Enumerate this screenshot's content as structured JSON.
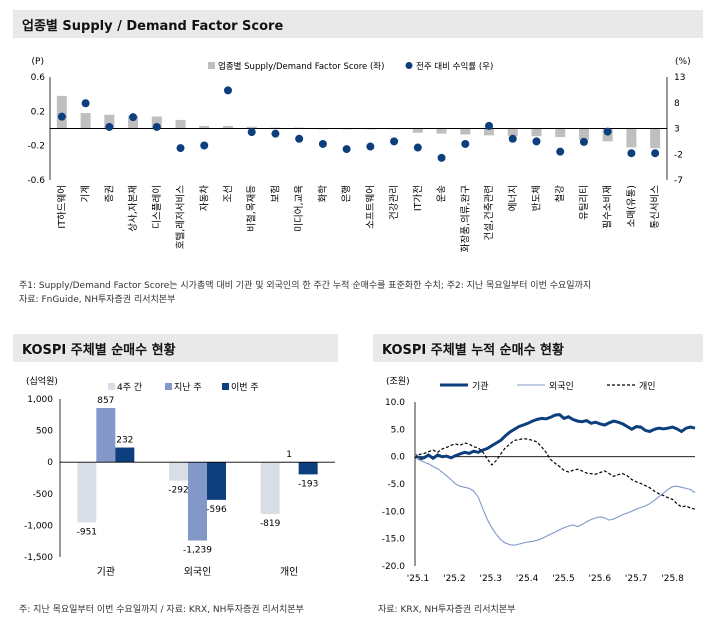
{
  "top": {
    "title": "업종별 Supply / Demand Factor Score",
    "note1": "주1: Supply/Demand Factor Score는 시가총액 대비 기관 및 외국인의 한 주간 누적 순매수를 표준화한 수치; 주2: 지난 목요일부터 이번 수요일까지",
    "note2": "자료: FnGuide, NH투자증권 리서치본부"
  },
  "left": {
    "title": "KOSPI 주체별 순매수 현황",
    "note": "주: 지난 목요일부터 이번 수요일까지 / 자료: KRX, NH투자증권 리서치본부"
  },
  "right": {
    "title": "KOSPI 주체별 누적 순매수 현황",
    "note": "자료: KRX, NH투자증권 리서치본부"
  },
  "colors": {
    "bar_gray": "#bfbfbf",
    "dot_blue": "#0d3e7e",
    "light": "#d9dee6",
    "mid": "#8397c8",
    "dark": "#0d3e7e",
    "inst": "#0d3e7e",
    "foreign": "#7f9ac8"
  },
  "chart_data": [
    {
      "type": "bar",
      "title": "업종별 Supply / Demand Factor Score",
      "left_unit": "(P)",
      "right_unit": "(%)",
      "categories": [
        "IT하드웨어",
        "기계",
        "증권",
        "상사,자본재",
        "디스플레이",
        "호텔,레저서비스",
        "자동차",
        "조선",
        "비철,목재등",
        "보험",
        "미디어,교육",
        "화학",
        "은행",
        "소프트웨어",
        "건강관리",
        "IT가전",
        "운송",
        "화장품,의류,완구",
        "건설,건축관련",
        "에너지",
        "반도체",
        "철강",
        "유틸리티",
        "필수소비재",
        "소매(유통)",
        "통신서비스"
      ],
      "series": [
        {
          "name": "업종별 Supply/Demand Factor Score (좌)",
          "axis": "left",
          "kind": "bar",
          "values": [
            0.38,
            0.18,
            0.16,
            0.15,
            0.14,
            0.1,
            0.03,
            0.03,
            0.02,
            0.01,
            0.01,
            -0.01,
            -0.01,
            -0.01,
            -0.01,
            -0.05,
            -0.06,
            -0.07,
            -0.08,
            -0.09,
            -0.09,
            -0.1,
            -0.13,
            -0.15,
            -0.22,
            -0.23
          ]
        },
        {
          "name": "전주 대비 수익률 (우)",
          "axis": "right",
          "kind": "dot",
          "values": [
            5.3,
            7.9,
            3.3,
            5.2,
            3.3,
            -0.8,
            -0.3,
            10.4,
            2.3,
            2.0,
            1.0,
            0.0,
            -1.0,
            -0.5,
            0.5,
            -0.7,
            -2.7,
            0.0,
            3.5,
            1.0,
            0.5,
            -1.5,
            0.4,
            2.4,
            -1.8,
            -1.8
          ]
        }
      ],
      "y_left": {
        "range": [
          -0.6,
          0.6
        ],
        "ticks": [
          "0.6",
          "0.2",
          "-0.2",
          "-0.6"
        ]
      },
      "y_right": {
        "range": [
          -7,
          13
        ],
        "ticks": [
          "13",
          "8",
          "3",
          "-2",
          "-7"
        ]
      },
      "legend_bar": "업종별 Supply/Demand Factor Score (좌)",
      "legend_dot": "전주 대비 수익률 (우)"
    },
    {
      "type": "bar",
      "title": "KOSPI 주체별 순매수 현황",
      "unit": "(십억원)",
      "categories": [
        "기관",
        "외국인",
        "개인"
      ],
      "series": [
        {
          "name": "4주 간",
          "values": [
            -951,
            -292,
            -819
          ]
        },
        {
          "name": "지난 주",
          "values": [
            857,
            -1239,
            1
          ]
        },
        {
          "name": "이번 주",
          "values": [
            232,
            -596,
            -193
          ]
        }
      ],
      "labels": [
        [
          "-951",
          "857",
          "232"
        ],
        [
          "-292",
          "-1,239",
          "-596"
        ],
        [
          "-819",
          "1",
          "-193"
        ]
      ],
      "ylim": [
        -1500,
        1000
      ],
      "ticks": [
        "1,000",
        "500",
        "0",
        "-500",
        "-1,000",
        "-1,500"
      ]
    },
    {
      "type": "line",
      "title": "KOSPI 주체별 누적 순매수 현황",
      "unit": "(조원)",
      "x_labels": [
        "'25.1",
        "'25.2",
        "'25.3",
        "'25.4",
        "'25.5",
        "'25.6",
        "'25.7",
        "'25.8"
      ],
      "ylim": [
        -20,
        10
      ],
      "ticks": [
        "10.0",
        "5.0",
        "0.0",
        "-5.0",
        "-10.0",
        "-15.0",
        "-20.0"
      ],
      "series": [
        {
          "name": "기관",
          "style": "solid-thick",
          "values": [
            0.3,
            -0.4,
            -0.2,
            0.3,
            -0.3,
            0.3,
            0.0,
            0.1,
            -0.2,
            0.2,
            0.5,
            0.8,
            0.6,
            1.0,
            0.8,
            1.2,
            1.5,
            2.0,
            2.5,
            3.0,
            3.8,
            4.5,
            5.0,
            5.5,
            5.8,
            6.1,
            6.5,
            6.8,
            7.0,
            6.9,
            7.2,
            7.6,
            7.7,
            7.0,
            7.3,
            6.8,
            6.5,
            6.4,
            6.6,
            6.1,
            6.3,
            6.0,
            5.8,
            6.2,
            6.5,
            6.3,
            6.0,
            5.5,
            5.0,
            5.5,
            5.4,
            4.8,
            4.6,
            5.0,
            5.2,
            5.1,
            5.2,
            5.4,
            5.1,
            4.6,
            5.2,
            5.4,
            5.2
          ]
        },
        {
          "name": "외국인",
          "style": "solid-thin",
          "values": [
            0.3,
            -0.6,
            -1.0,
            -1.3,
            -1.8,
            -2.2,
            -2.8,
            -3.5,
            -4.2,
            -5.0,
            -5.4,
            -5.6,
            -5.8,
            -6.3,
            -7.4,
            -9.5,
            -11.5,
            -13.0,
            -14.2,
            -15.2,
            -15.8,
            -16.1,
            -16.2,
            -16.0,
            -15.8,
            -15.6,
            -15.5,
            -15.3,
            -15.0,
            -14.6,
            -14.2,
            -13.8,
            -13.4,
            -13.0,
            -12.7,
            -12.5,
            -12.8,
            -12.4,
            -11.9,
            -11.5,
            -11.2,
            -11.0,
            -11.2,
            -11.6,
            -11.4,
            -11.0,
            -10.6,
            -10.3,
            -10.0,
            -9.6,
            -9.3,
            -9.0,
            -8.6,
            -8.0,
            -7.3,
            -6.7,
            -6.0,
            -5.5,
            -5.4,
            -5.6,
            -5.8,
            -6.0,
            -6.6
          ]
        },
        {
          "name": "개인",
          "style": "dashed",
          "values": [
            -0.3,
            0.4,
            0.6,
            0.9,
            1.2,
            0.8,
            1.4,
            1.7,
            2.1,
            2.3,
            2.1,
            2.5,
            2.3,
            1.8,
            1.6,
            0.9,
            -0.4,
            -1.5,
            -0.7,
            0.5,
            1.6,
            2.3,
            3.0,
            3.1,
            3.3,
            3.2,
            3.0,
            2.7,
            1.8,
            0.8,
            -0.5,
            -1.2,
            -1.8,
            -2.5,
            -2.8,
            -2.5,
            -2.3,
            -2.6,
            -3.0,
            -3.1,
            -3.2,
            -2.9,
            -2.6,
            -3.1,
            -3.6,
            -3.3,
            -3.1,
            -3.5,
            -4.2,
            -4.6,
            -4.9,
            -5.3,
            -5.7,
            -6.3,
            -6.8,
            -7.1,
            -7.5,
            -7.8,
            -8.6,
            -9.2,
            -9.0,
            -9.4,
            -9.6
          ]
        }
      ]
    }
  ]
}
